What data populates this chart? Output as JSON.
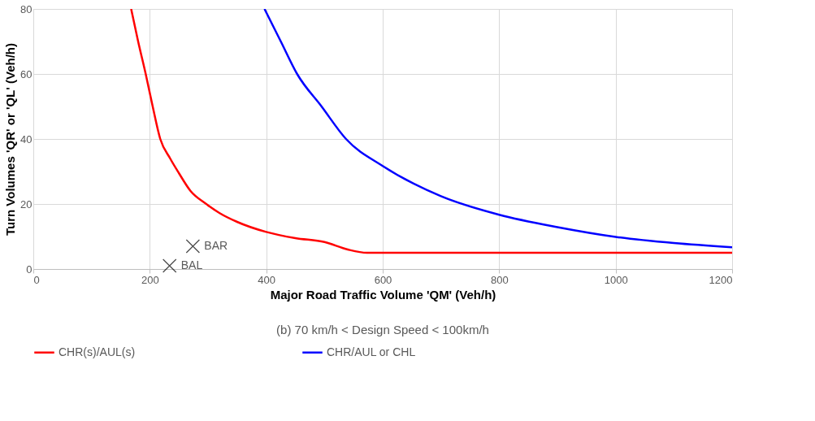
{
  "chart_data": {
    "type": "line",
    "subtitle": "(b) 70 km/h < Design Speed < 100km/h",
    "xlabel": "Major Road Traffic Volume 'QM' (Veh/h)",
    "ylabel": "Turn Volumes 'QR' or 'QL' (Veh/h)",
    "xlim": [
      0,
      1200
    ],
    "ylim": [
      0,
      80
    ],
    "xticks": [
      0,
      200,
      400,
      600,
      800,
      1000,
      1200
    ],
    "yticks": [
      0,
      20,
      40,
      60,
      80
    ],
    "grid": true,
    "legend": "bottom",
    "line_style": "solid",
    "series": [
      {
        "name": "CHR(s)/AUL(s)",
        "color": "#ff0000",
        "x": [
          168,
          180,
          193,
          205,
          218,
          235,
          250,
          270,
          297,
          320,
          350,
          400,
          450,
          500,
          540,
          573,
          700,
          900,
          1200
        ],
        "values": [
          80,
          70,
          60,
          50,
          40,
          34,
          29.5,
          24,
          20,
          17.2,
          14.5,
          11.4,
          9.5,
          8.3,
          6,
          5,
          5,
          5,
          5
        ]
      },
      {
        "name": "CHR/AUL or CHL",
        "color": "#0000ff",
        "x": [
          397,
          425,
          453,
          495,
          537,
          600,
          700,
          800,
          900,
          1000,
          1100,
          1200
        ],
        "values": [
          80,
          70,
          60,
          50,
          40,
          31.7,
          22.4,
          16.7,
          12.9,
          9.9,
          8,
          6.7
        ]
      },
      {
        "name": "BAR",
        "type": "scatter",
        "marker": "cross",
        "color": "#000000",
        "x": [
          274
        ],
        "values": [
          7
        ]
      },
      {
        "name": "BAL",
        "type": "scatter",
        "marker": "cross",
        "color": "#000000",
        "x": [
          234
        ],
        "values": [
          1
        ]
      }
    ]
  }
}
